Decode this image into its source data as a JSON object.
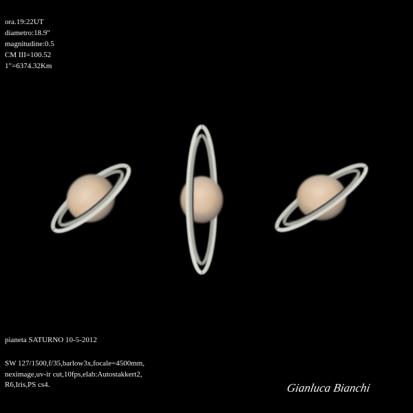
{
  "info": {
    "lines": [
      "ora.19:22UT",
      "diametro:18.9\"",
      "magnitudine:0.5",
      "CM III=100.52",
      "1\"=6374.32Km"
    ]
  },
  "caption": {
    "title": "pianeta SATURNO 10-5-2012",
    "notes": [
      "SW 127/1500,f/35,barlow3x,focale=4500mm,",
      "neximage,uv-ir cut,10fps,elab:Autostakkert2,",
      "R6,Iris,PS cs4."
    ]
  },
  "signature": "Gianluca Bianchi",
  "colors": {
    "background": "#000000",
    "text": "#f2f2f2",
    "planet_light": "#e6d2bb",
    "planet_band": "#c9a98a",
    "ring": "#cfd0c8"
  },
  "images": [
    {
      "name": "saturn-left"
    },
    {
      "name": "saturn-center"
    },
    {
      "name": "saturn-right"
    }
  ]
}
